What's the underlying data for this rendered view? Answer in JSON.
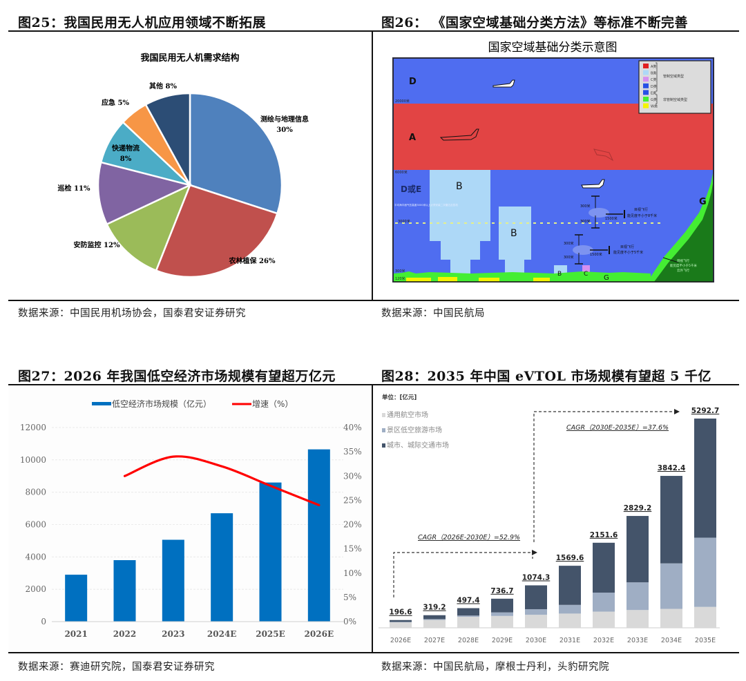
{
  "fig25": {
    "title": "图25：我国民用无人机应用领域不断拓展",
    "source": "数据来源：中国民用机场协会，国泰君安证券研究",
    "chart_title": "我国民用无人机需求结构"
  },
  "fig26": {
    "title": "图26： 《国家空域基础分类方法》等标准不断完善",
    "source": "数据来源：中国民航局",
    "chart_title": "国家空域基础分类示意图",
    "zones": {
      "top": "D",
      "upper": "A",
      "middle": "D或E",
      "b1": "B",
      "b2": "B",
      "b3": "B",
      "c": "C",
      "g_ground": "G",
      "g_mountain": "G"
    },
    "altitudes": {
      "a20000": "20000米",
      "a6000": "6000米",
      "a3000": "3000米",
      "a300": "300米",
      "a120": "120米"
    },
    "side_note": "平均海平面气压高度3000米以上必须安装二次雷达应答机",
    "vfr1": {
      "v1": "300米",
      "v2": "300米",
      "h": "1500米",
      "text1": "目视飞行",
      "text2": "能见度不小于8千米"
    },
    "vfr2": {
      "v1": "300米",
      "v2": "300米",
      "h": "1500米",
      "text1": "目视飞行",
      "text2": "能见度不小于5千米"
    },
    "vfr3": {
      "text1": "目视飞行",
      "text2": "能见度不小于5千米",
      "text3": "云外飞行"
    },
    "legend": {
      "items": [
        {
          "label": "A类",
          "color": "#e02020"
        },
        {
          "label": "B类",
          "color": "#add8f7"
        },
        {
          "label": "C类",
          "color": "#d58ff0"
        },
        {
          "label": "D类",
          "color": "#2850e6"
        },
        {
          "label": "E类",
          "color": "#2850e6"
        },
        {
          "label": "G类",
          "color": "#44ee33"
        },
        {
          "label": "W类",
          "color": "#f4f400"
        }
      ],
      "group_controlled": "管制空域类型",
      "group_uncontrolled": "非管制空域类型"
    }
  },
  "fig27": {
    "title": "图27：2026 年我国低空经济市场规模有望超万亿元",
    "source": "数据来源：赛迪研究院，国泰君安证券研究",
    "legend_bar": "低空经济市场规模（亿元）",
    "legend_line": "增速（%）"
  },
  "fig28": {
    "title": "图28：2035 年中国 eVTOL 市场规模有望超 5 千亿",
    "source": "数据来源：中国民航局，摩根士丹利，头豹研究院",
    "unit": "单位：[亿元]",
    "cagr1": "CAGR（2026E-2030E）=52.9%",
    "cagr2": "CAGR（2030E-2035E）=37.6%"
  },
  "chart_data": [
    {
      "type": "pie",
      "title": "我国民用无人机需求结构",
      "categories": [
        "测绘与地理信息",
        "农林植保",
        "安防监控",
        "巡检",
        "快递物流",
        "应急",
        "其他"
      ],
      "values": [
        30,
        26,
        12,
        11,
        8,
        5,
        8
      ],
      "unit": "%",
      "colors": [
        "#4f81bd",
        "#c0504d",
        "#9bbb59",
        "#8064a2",
        "#4bacc6",
        "#f79646",
        "#2c4d75"
      ]
    },
    {
      "type": "bar",
      "title": "2026 年我国低空经济市场规模有望超万亿元",
      "categories": [
        "2021",
        "2022",
        "2023",
        "2024E",
        "2025E",
        "2026E"
      ],
      "series": [
        {
          "name": "低空经济市场规模（亿元）",
          "type": "bar",
          "axis": "left",
          "color": "#0070c0",
          "values": [
            2900,
            3800,
            5060,
            6700,
            8600,
            10650
          ]
        },
        {
          "name": "增速（%）",
          "type": "line",
          "axis": "right",
          "color": "#ff0000",
          "values": [
            null,
            30,
            34,
            32,
            28,
            24
          ]
        }
      ],
      "ylim": [
        0,
        12000
      ],
      "yticks": [
        0,
        2000,
        4000,
        6000,
        8000,
        10000,
        12000
      ],
      "y2lim": [
        0,
        40
      ],
      "y2ticks": [
        "0%",
        "5%",
        "10%",
        "15%",
        "20%",
        "25%",
        "30%",
        "35%",
        "40%"
      ],
      "legend_position": "top"
    },
    {
      "type": "bar",
      "stacked": true,
      "title": "2035 年中国 eVTOL 市场规模有望超 5 千亿",
      "ylabel": "单位：[亿元]",
      "categories": [
        "2026E",
        "2027E",
        "2028E",
        "2029E",
        "2030E",
        "2031E",
        "2032E",
        "2033E",
        "2034E",
        "2035E"
      ],
      "totals": [
        196.6,
        319.2,
        497.4,
        736.7,
        1074.3,
        1569.6,
        2151.6,
        2829.2,
        3842.4,
        5292.7
      ],
      "series": [
        {
          "name": "通用航空市场",
          "color": "#d9d9d9",
          "values": [
            140,
            200,
            280,
            300,
            330,
            360,
            410,
            450,
            480,
            530
          ]
        },
        {
          "name": "景区低空旅游市场",
          "color": "#9faec4",
          "values": [
            10,
            20,
            30,
            90,
            140,
            220,
            480,
            700,
            1150,
            1750
          ]
        },
        {
          "name": "城市、城际交通市场",
          "color": "#44546a",
          "values": [
            46.6,
            99.2,
            187.4,
            346.7,
            604.3,
            989.6,
            1261.6,
            1679.2,
            2212.4,
            3012.7
          ]
        }
      ],
      "annotations": [
        "CAGR（2026E-2030E）=52.9%",
        "CAGR（2030E-2035E）=37.6%"
      ],
      "legend_position": "top-left"
    }
  ]
}
